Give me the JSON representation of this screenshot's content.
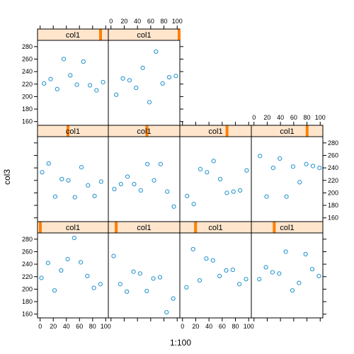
{
  "chart_data": {
    "type": "scatter",
    "layout": "lattice 4 columns x 3 rows, panels ordered bottom-left to top-right",
    "xlabel": "1:100",
    "ylabel": "col3",
    "xlim": [
      -4,
      104
    ],
    "ylim": [
      154,
      290
    ],
    "x_ticks": [
      0,
      20,
      40,
      60,
      80,
      100
    ],
    "y_ticks": [
      160,
      180,
      200,
      220,
      240,
      260,
      280
    ],
    "strip_variable": "col1",
    "colors": {
      "point": "#1e90cd",
      "strip_bg": "#ffe5cc",
      "strip_marker": "#ff7f00"
    },
    "panels": [
      {
        "strip_label": "col1",
        "strip_level": 0.04,
        "x": [
          2,
          12,
          22,
          32,
          42,
          52,
          62,
          72,
          82,
          92
        ],
        "y": [
          218,
          242,
          198,
          230,
          248,
          282,
          243,
          221,
          202,
          208
        ]
      },
      {
        "strip_label": "col1",
        "strip_level": 0.11,
        "x": [
          4,
          14,
          24,
          34,
          44,
          54,
          64,
          74,
          84,
          94
        ],
        "y": [
          253,
          208,
          196,
          228,
          225,
          197,
          217,
          219,
          163,
          185
        ]
      },
      {
        "strip_label": "col1",
        "strip_level": 0.22,
        "x": [
          6,
          16,
          26,
          36,
          46,
          56,
          66,
          76,
          86,
          96
        ],
        "y": [
          203,
          264,
          214,
          249,
          246,
          221,
          230,
          231,
          208,
          216
        ]
      },
      {
        "strip_label": "col1",
        "strip_level": 0.32,
        "x": [
          8,
          18,
          28,
          38,
          48,
          58,
          68,
          78,
          88,
          98
        ],
        "y": [
          216,
          235,
          227,
          225,
          260,
          198,
          210,
          256,
          232,
          221
        ]
      },
      {
        "strip_label": "col1",
        "strip_level": 0.43,
        "x": [
          3,
          13,
          23,
          33,
          43,
          53,
          63,
          73,
          83,
          93
        ],
        "y": [
          233,
          247,
          194,
          222,
          220,
          193,
          241,
          212,
          195,
          218
        ]
      },
      {
        "strip_label": "col1",
        "strip_level": 0.54,
        "x": [
          5,
          15,
          25,
          35,
          45,
          55,
          65,
          75,
          85,
          95
        ],
        "y": [
          206,
          214,
          226,
          214,
          204,
          246,
          220,
          246,
          202,
          178
        ]
      },
      {
        "strip_label": "col1",
        "strip_level": 0.66,
        "x": [
          7,
          17,
          27,
          37,
          47,
          57,
          67,
          77,
          87,
          97
        ],
        "y": [
          195,
          182,
          238,
          233,
          251,
          222,
          200,
          202,
          204,
          236
        ]
      },
      {
        "strip_label": "col1",
        "strip_level": 0.78,
        "x": [
          9,
          19,
          29,
          39,
          49,
          59,
          69,
          79,
          89,
          99
        ],
        "y": [
          259,
          194,
          240,
          255,
          194,
          242,
          217,
          246,
          243,
          240
        ]
      },
      {
        "strip_label": "col1",
        "strip_level": 0.89,
        "x": [
          6,
          16,
          26,
          36,
          46,
          56,
          66,
          76,
          86,
          96
        ],
        "y": [
          221,
          228,
          212,
          260,
          234,
          219,
          256,
          218,
          210,
          223
        ]
      },
      {
        "strip_label": "col1",
        "strip_level": 0.99,
        "x": [
          8,
          18,
          28,
          38,
          48,
          58,
          68,
          78,
          88,
          98
        ],
        "y": [
          203,
          229,
          226,
          214,
          246,
          191,
          272,
          221,
          231,
          233
        ]
      }
    ]
  }
}
